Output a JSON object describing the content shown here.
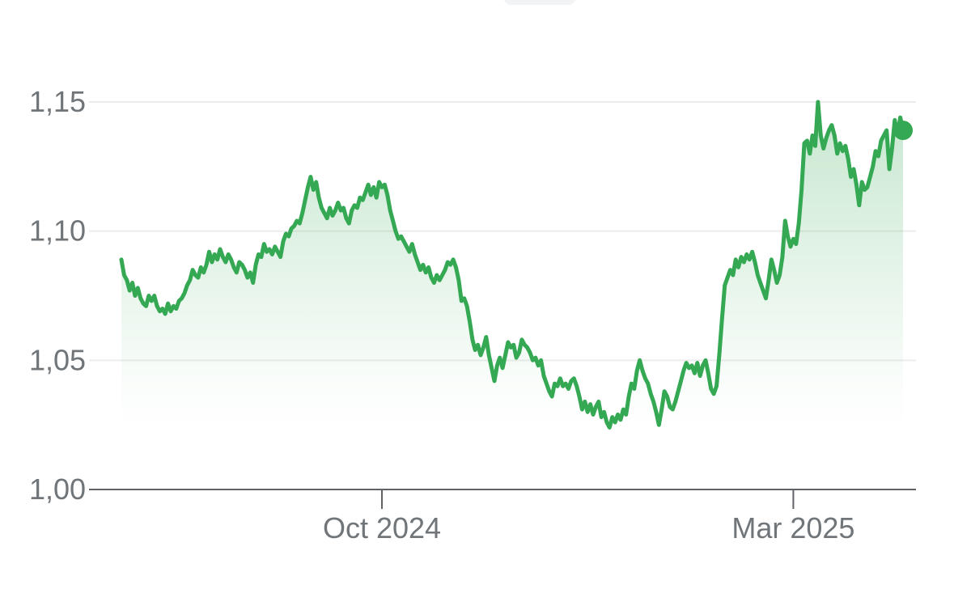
{
  "chart_data": {
    "type": "area",
    "title": "",
    "xlabel": "",
    "ylabel": "",
    "ylim": [
      1.0,
      1.15
    ],
    "y_ticks": [
      "1,00",
      "1,05",
      "1,10",
      "1,15"
    ],
    "y_tick_values": [
      1.0,
      1.05,
      1.1,
      1.15
    ],
    "x_tick_labels": [
      "Oct 2024",
      "Mar 2025"
    ],
    "x_tick_index": [
      95,
      245
    ],
    "grid": true,
    "colors": {
      "line": "#34a853",
      "fill": "#34a853",
      "grid": "#ececec",
      "axis": "#5f6368",
      "label": "#70757a"
    },
    "series": [
      {
        "values": [
          1.089,
          1.083,
          1.081,
          1.077,
          1.08,
          1.075,
          1.078,
          1.074,
          1.072,
          1.071,
          1.075,
          1.073,
          1.075,
          1.071,
          1.069,
          1.07,
          1.068,
          1.072,
          1.069,
          1.071,
          1.07,
          1.073,
          1.074,
          1.076,
          1.079,
          1.081,
          1.085,
          1.083,
          1.082,
          1.086,
          1.084,
          1.087,
          1.092,
          1.088,
          1.091,
          1.089,
          1.093,
          1.09,
          1.088,
          1.091,
          1.089,
          1.086,
          1.084,
          1.088,
          1.087,
          1.085,
          1.082,
          1.084,
          1.08,
          1.087,
          1.091,
          1.09,
          1.095,
          1.092,
          1.093,
          1.091,
          1.094,
          1.092,
          1.09,
          1.096,
          1.099,
          1.098,
          1.101,
          1.102,
          1.104,
          1.103,
          1.107,
          1.112,
          1.117,
          1.121,
          1.116,
          1.119,
          1.113,
          1.109,
          1.107,
          1.105,
          1.109,
          1.106,
          1.108,
          1.111,
          1.108,
          1.109,
          1.105,
          1.103,
          1.108,
          1.11,
          1.109,
          1.113,
          1.112,
          1.115,
          1.118,
          1.114,
          1.117,
          1.113,
          1.119,
          1.117,
          1.118,
          1.114,
          1.108,
          1.104,
          1.1,
          1.097,
          1.098,
          1.096,
          1.094,
          1.092,
          1.095,
          1.091,
          1.088,
          1.085,
          1.087,
          1.084,
          1.086,
          1.082,
          1.08,
          1.083,
          1.081,
          1.083,
          1.085,
          1.088,
          1.087,
          1.089,
          1.086,
          1.081,
          1.073,
          1.074,
          1.071,
          1.065,
          1.058,
          1.054,
          1.056,
          1.052,
          1.055,
          1.059,
          1.052,
          1.047,
          1.042,
          1.048,
          1.051,
          1.047,
          1.052,
          1.057,
          1.055,
          1.056,
          1.051,
          1.053,
          1.058,
          1.056,
          1.055,
          1.053,
          1.05,
          1.051,
          1.048,
          1.05,
          1.044,
          1.041,
          1.038,
          1.036,
          1.041,
          1.04,
          1.043,
          1.04,
          1.041,
          1.039,
          1.042,
          1.043,
          1.04,
          1.036,
          1.031,
          1.034,
          1.03,
          1.033,
          1.029,
          1.032,
          1.034,
          1.028,
          1.03,
          1.026,
          1.024,
          1.028,
          1.026,
          1.029,
          1.027,
          1.031,
          1.029,
          1.036,
          1.041,
          1.039,
          1.046,
          1.05,
          1.046,
          1.043,
          1.041,
          1.037,
          1.034,
          1.03,
          1.025,
          1.031,
          1.038,
          1.036,
          1.032,
          1.031,
          1.034,
          1.038,
          1.042,
          1.046,
          1.049,
          1.047,
          1.048,
          1.045,
          1.049,
          1.044,
          1.048,
          1.05,
          1.045,
          1.039,
          1.037,
          1.04,
          1.052,
          1.066,
          1.079,
          1.082,
          1.085,
          1.083,
          1.089,
          1.086,
          1.09,
          1.088,
          1.091,
          1.089,
          1.092,
          1.088,
          1.083,
          1.08,
          1.077,
          1.074,
          1.081,
          1.089,
          1.085,
          1.08,
          1.083,
          1.09,
          1.104,
          1.098,
          1.094,
          1.097,
          1.095,
          1.103,
          1.116,
          1.134,
          1.135,
          1.13,
          1.137,
          1.133,
          1.15,
          1.137,
          1.132,
          1.136,
          1.139,
          1.141,
          1.137,
          1.13,
          1.134,
          1.131,
          1.133,
          1.128,
          1.121,
          1.124,
          1.118,
          1.11,
          1.119,
          1.116,
          1.117,
          1.121,
          1.125,
          1.131,
          1.129,
          1.135,
          1.137,
          1.139,
          1.124,
          1.132,
          1.143,
          1.137,
          1.144,
          1.139
        ]
      }
    ]
  }
}
